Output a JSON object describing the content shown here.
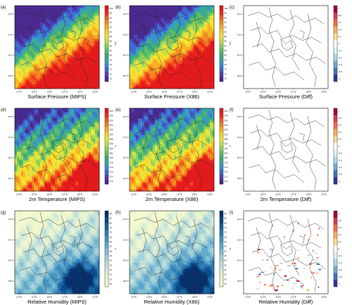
{
  "x_ticks": [
    "114°E",
    "115°E",
    "116°E",
    "117°E",
    "118°E",
    "119°E"
  ],
  "y_ticks": [
    "42°N",
    "41°N",
    "40°N",
    "39°N"
  ],
  "rows": [
    {
      "variable": "surface-pressure",
      "unit": "hPa",
      "palette": "rainbow",
      "cbar_ticks": [
        "100",
        "98",
        "96",
        "94",
        "92",
        "90",
        "88",
        "86",
        "84",
        "82",
        "80",
        "78",
        "76",
        "74",
        "72",
        "70"
      ],
      "diff_ticks": [
        "1",
        "0.8",
        "0.6",
        "0.4",
        "0.2",
        "0",
        "-0.2",
        "-0.4",
        "-0.6",
        "-0.8",
        "-1"
      ],
      "panels": [
        {
          "label": "(a)",
          "caption": "Surface Pressure (MIPS)"
        },
        {
          "label": "(b)",
          "caption": "Surface Pressure (X86)"
        },
        {
          "label": "(c)",
          "caption": "Surface Pressure (Diff)"
        }
      ]
    },
    {
      "variable": "2m-temperature",
      "unit": "K",
      "palette": "rainbow",
      "cbar_ticks": [
        "300",
        "298",
        "296",
        "294",
        "292",
        "290",
        "288",
        "286",
        "284",
        "282",
        "280",
        "278",
        "276",
        "274",
        "272",
        "270"
      ],
      "diff_ticks": [
        "1",
        "0.8",
        "0.6",
        "0.4",
        "0.2",
        "0",
        "-0.2",
        "-0.4",
        "-0.6",
        "-0.8",
        "-1"
      ],
      "panels": [
        {
          "label": "(d)",
          "caption": "2m Temperature (MIPS)"
        },
        {
          "label": "(e)",
          "caption": "2m Temperature (X86)"
        },
        {
          "label": "(f)",
          "caption": "2m Temperature (Diff)"
        }
      ]
    },
    {
      "variable": "relative-humidity",
      "unit": "%",
      "palette": "blues",
      "cbar_ticks": [
        "90",
        "85",
        "80",
        "75",
        "70",
        "65",
        "60",
        "55",
        "50",
        "45",
        "40",
        "35",
        "30",
        "25",
        "20",
        "15"
      ],
      "diff_ticks": [
        "1",
        "0.8",
        "0.6",
        "0.4",
        "0.2",
        "0",
        "-0.2",
        "-0.4",
        "-0.6",
        "-0.8",
        "-1"
      ],
      "panels": [
        {
          "label": "(g)",
          "caption": "Relative Humidity (MIPS)"
        },
        {
          "label": "(h)",
          "caption": "Relative Humidity (X86)"
        },
        {
          "label": "(i)",
          "caption": "Relative Humidity (Diff)"
        }
      ]
    }
  ],
  "colors": {
    "rainbow": [
      "#e31a1c",
      "#ee2b1b",
      "#f25c1f",
      "#f58a21",
      "#f8b225",
      "#fad52a",
      "#f1e736",
      "#c6e04a",
      "#8fd15b",
      "#5fbf63",
      "#3fad78",
      "#3aa6a6",
      "#3a8fcf",
      "#3d6bd2",
      "#4b43b9",
      "#4a2a8f"
    ],
    "blues": [
      "#08306b",
      "#0b4a8a",
      "#17649e",
      "#2d7db4",
      "#4595c2",
      "#63aacd",
      "#84bfd3",
      "#a5d2d8",
      "#c3e1d9",
      "#daedd6",
      "#ebf6cf",
      "#f6f9cf"
    ],
    "diverging": [
      "#9e0142",
      "#d53e4f",
      "#f46d43",
      "#fdae61",
      "#fee08b",
      "#ffffff",
      "#e0f3f8",
      "#abd9e9",
      "#74add1",
      "#4575b4",
      "#313695"
    ]
  }
}
